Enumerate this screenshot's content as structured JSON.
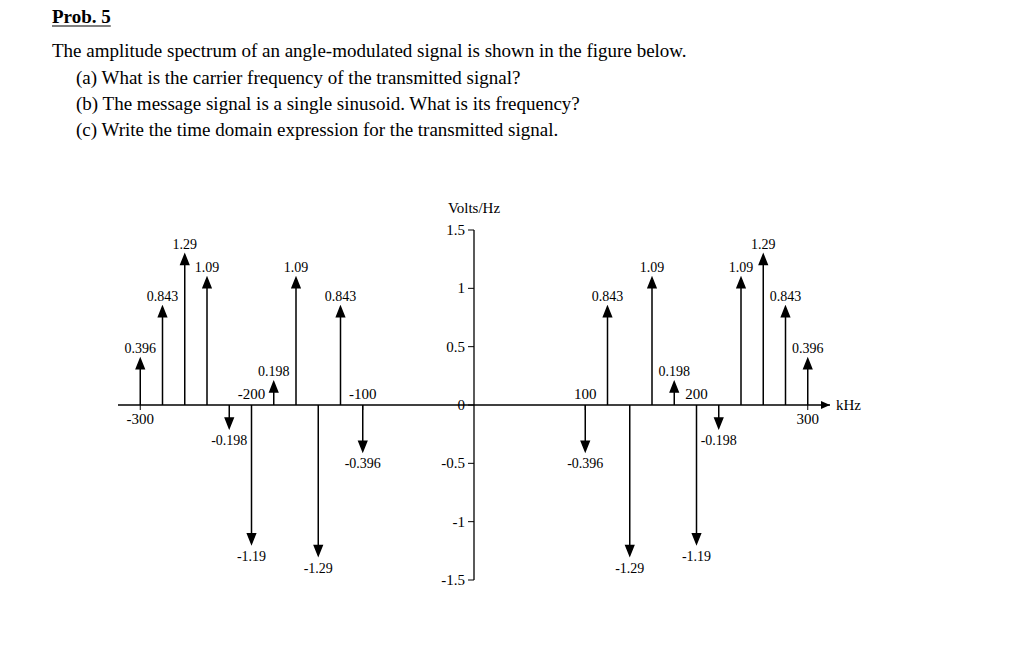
{
  "problem": {
    "title": "Prob. 5",
    "text": "The amplitude spectrum of an angle-modulated signal is shown in the figure below.",
    "questions": [
      "(a) What is the carrier frequency of the transmitted signal?",
      "(b) The message signal is a single sinusoid. What is its frequency?",
      "(c) Write the time domain expression for the transmitted signal."
    ]
  },
  "chart_data": {
    "type": "stem",
    "x_label": "kHz",
    "y_label": "Volts/Hz",
    "x": [
      -300,
      -280,
      -260,
      -240,
      -220,
      -200,
      -180,
      -160,
      -140,
      -120,
      -100,
      100,
      120,
      140,
      160,
      180,
      200,
      220,
      240,
      260,
      280,
      300
    ],
    "values": [
      0.396,
      0.843,
      1.29,
      1.09,
      -0.198,
      -1.19,
      0.198,
      1.09,
      -1.29,
      0.843,
      -0.396,
      -0.396,
      0.843,
      -1.29,
      1.09,
      0.198,
      -1.19,
      -0.198,
      1.09,
      1.29,
      0.843,
      0.396
    ],
    "xlim": [
      -320,
      320
    ],
    "ylim": [
      -1.5,
      1.5
    ],
    "xticks": [
      -300,
      -200,
      -100,
      100,
      200,
      300
    ],
    "yticks": [
      -1.5,
      -1,
      -0.5,
      0,
      0.5,
      1,
      1.5
    ],
    "data_labels": true,
    "color": "#000000"
  }
}
